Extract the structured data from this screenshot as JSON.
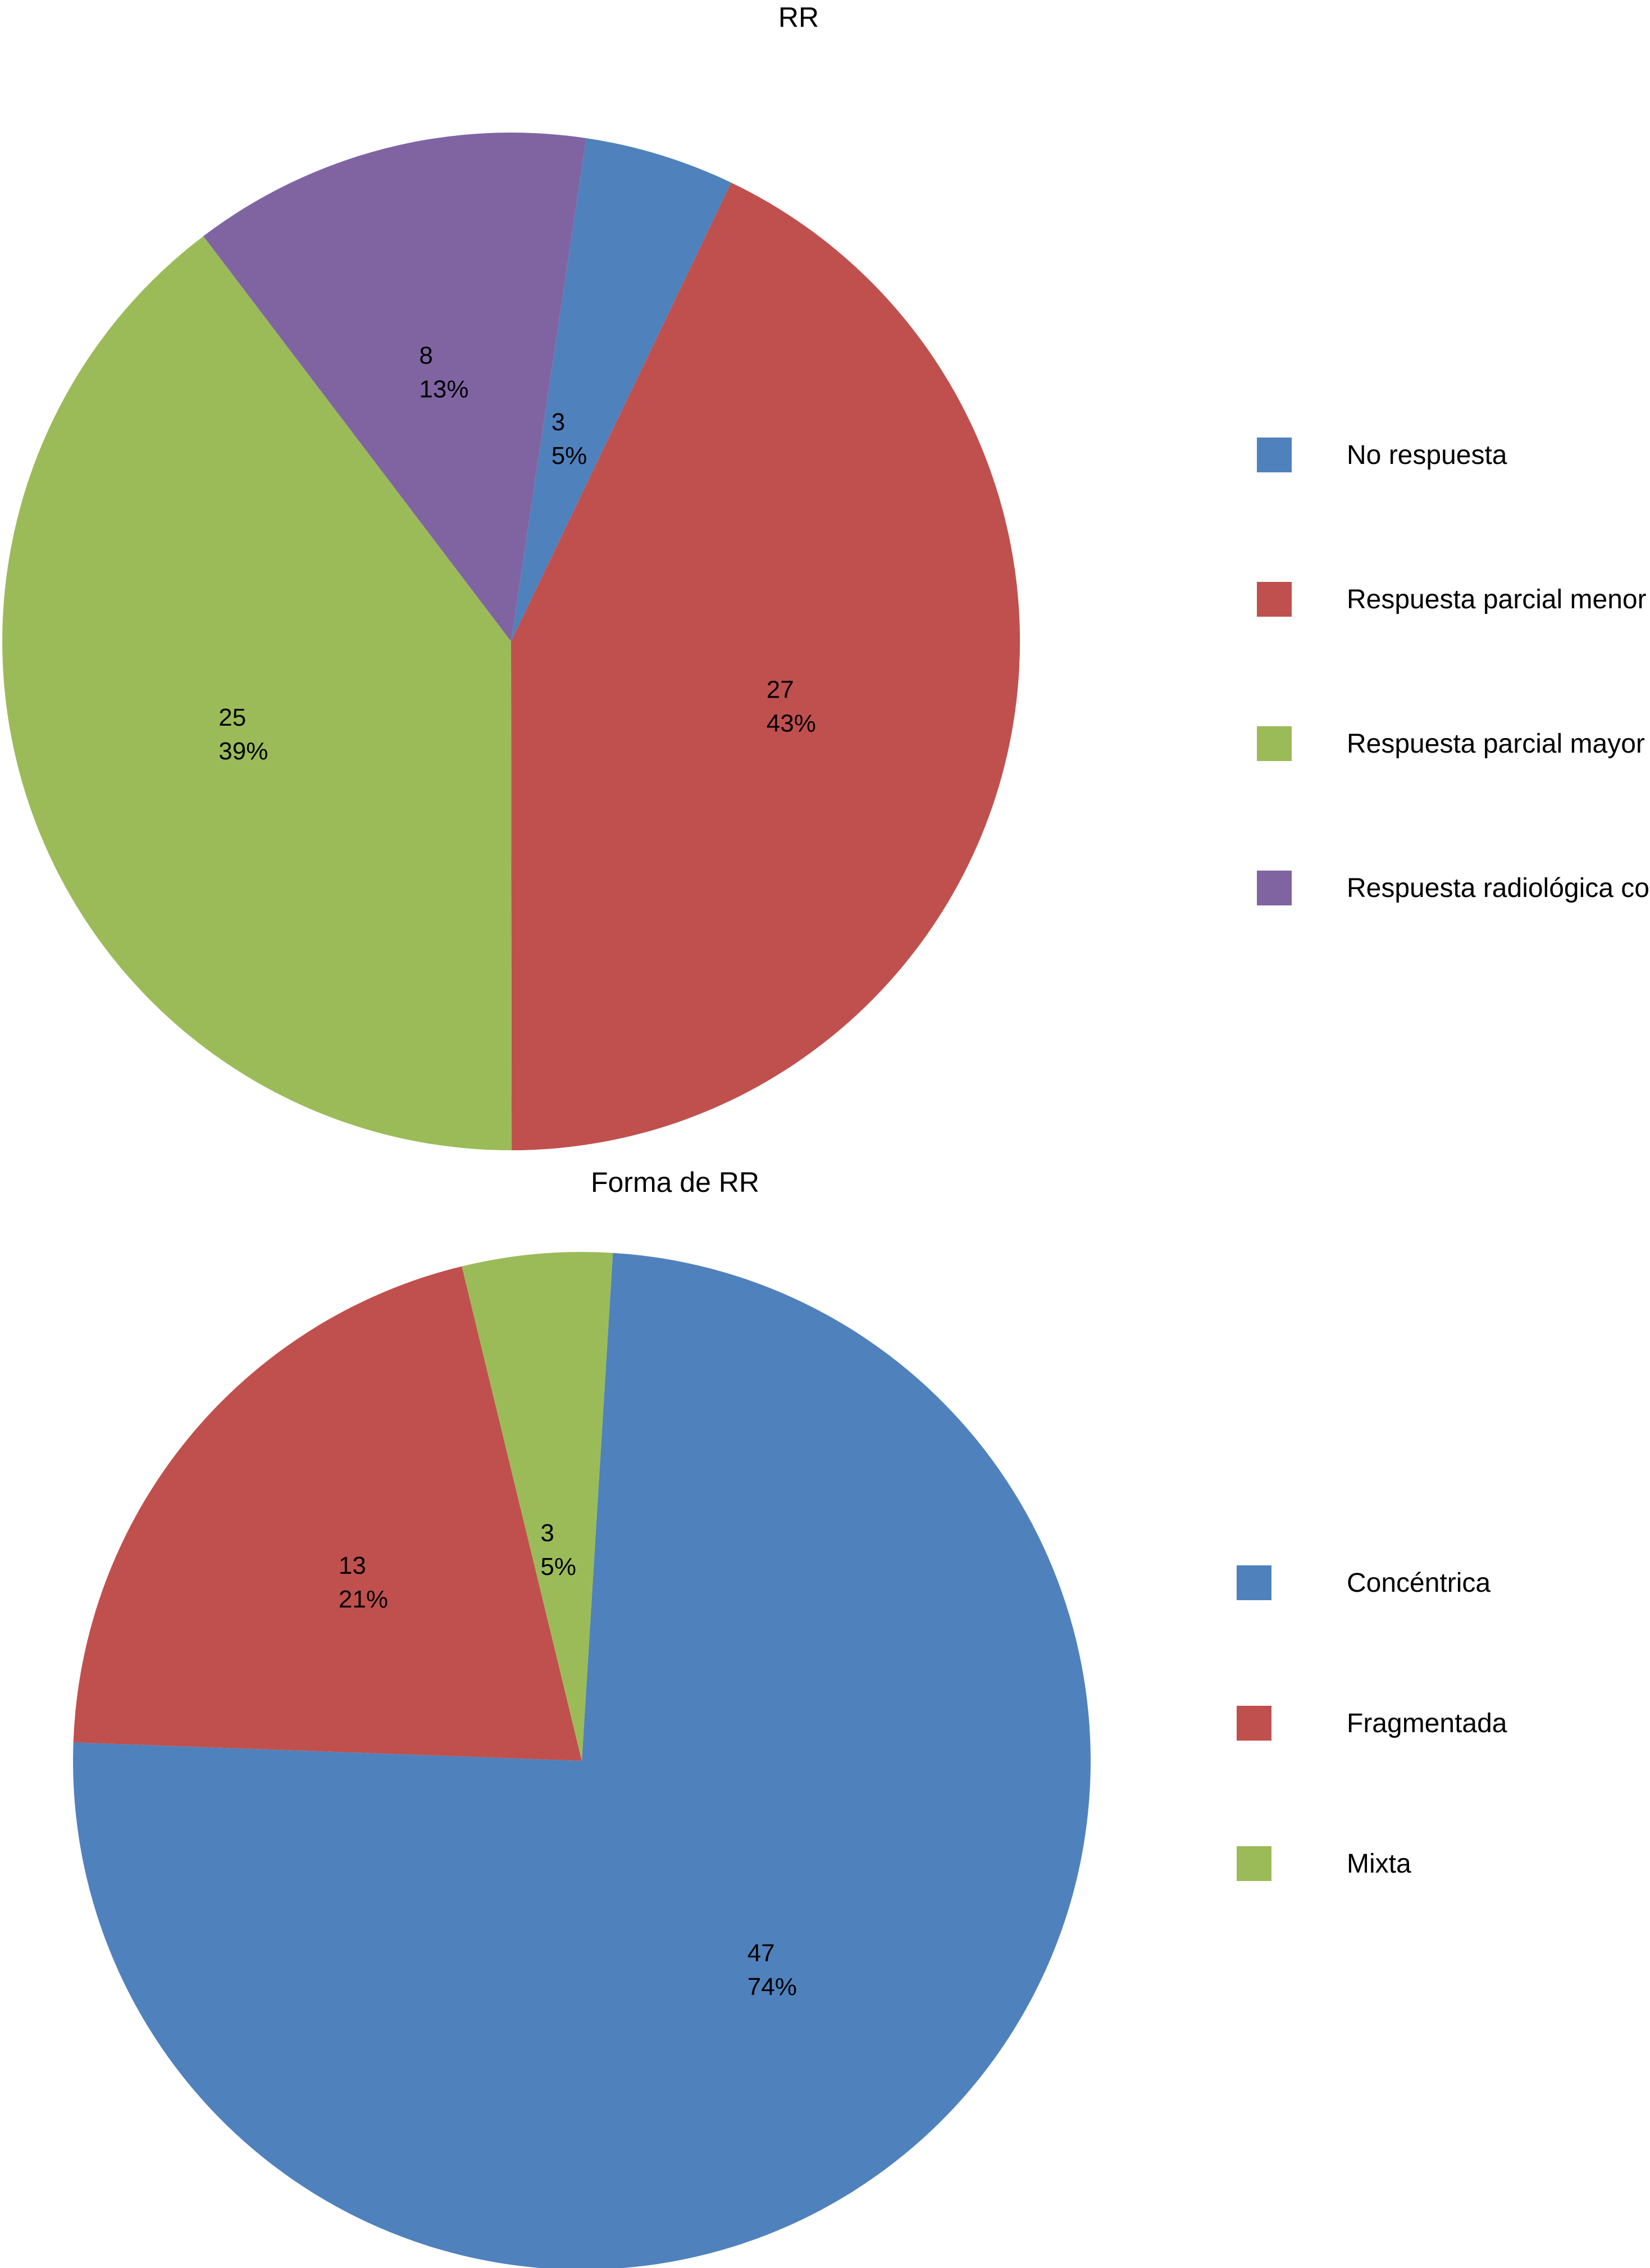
{
  "chart_data": [
    {
      "type": "pie",
      "title": "RR",
      "categories": [
        "No respuesta",
        "Respuesta parcial menor",
        "Respuesta parcial mayor",
        "Respuesta radiológica completa"
      ],
      "values": [
        3,
        27,
        25,
        8
      ],
      "percent_labels": [
        "5%",
        "43%",
        "39%",
        "13%"
      ],
      "colors": [
        "#4F81BD",
        "#C0504D",
        "#9BBB59",
        "#8064A2"
      ],
      "legend_position": "right"
    },
    {
      "type": "pie",
      "title": "Forma de RR",
      "categories": [
        "Concéntrica",
        "Fragmentada",
        "Mixta"
      ],
      "values": [
        47,
        13,
        3
      ],
      "percent_labels": [
        "74%",
        "21%",
        "5%"
      ],
      "colors": [
        "#4F81BD",
        "#C0504D",
        "#9BBB59"
      ],
      "legend_position": "right"
    }
  ]
}
